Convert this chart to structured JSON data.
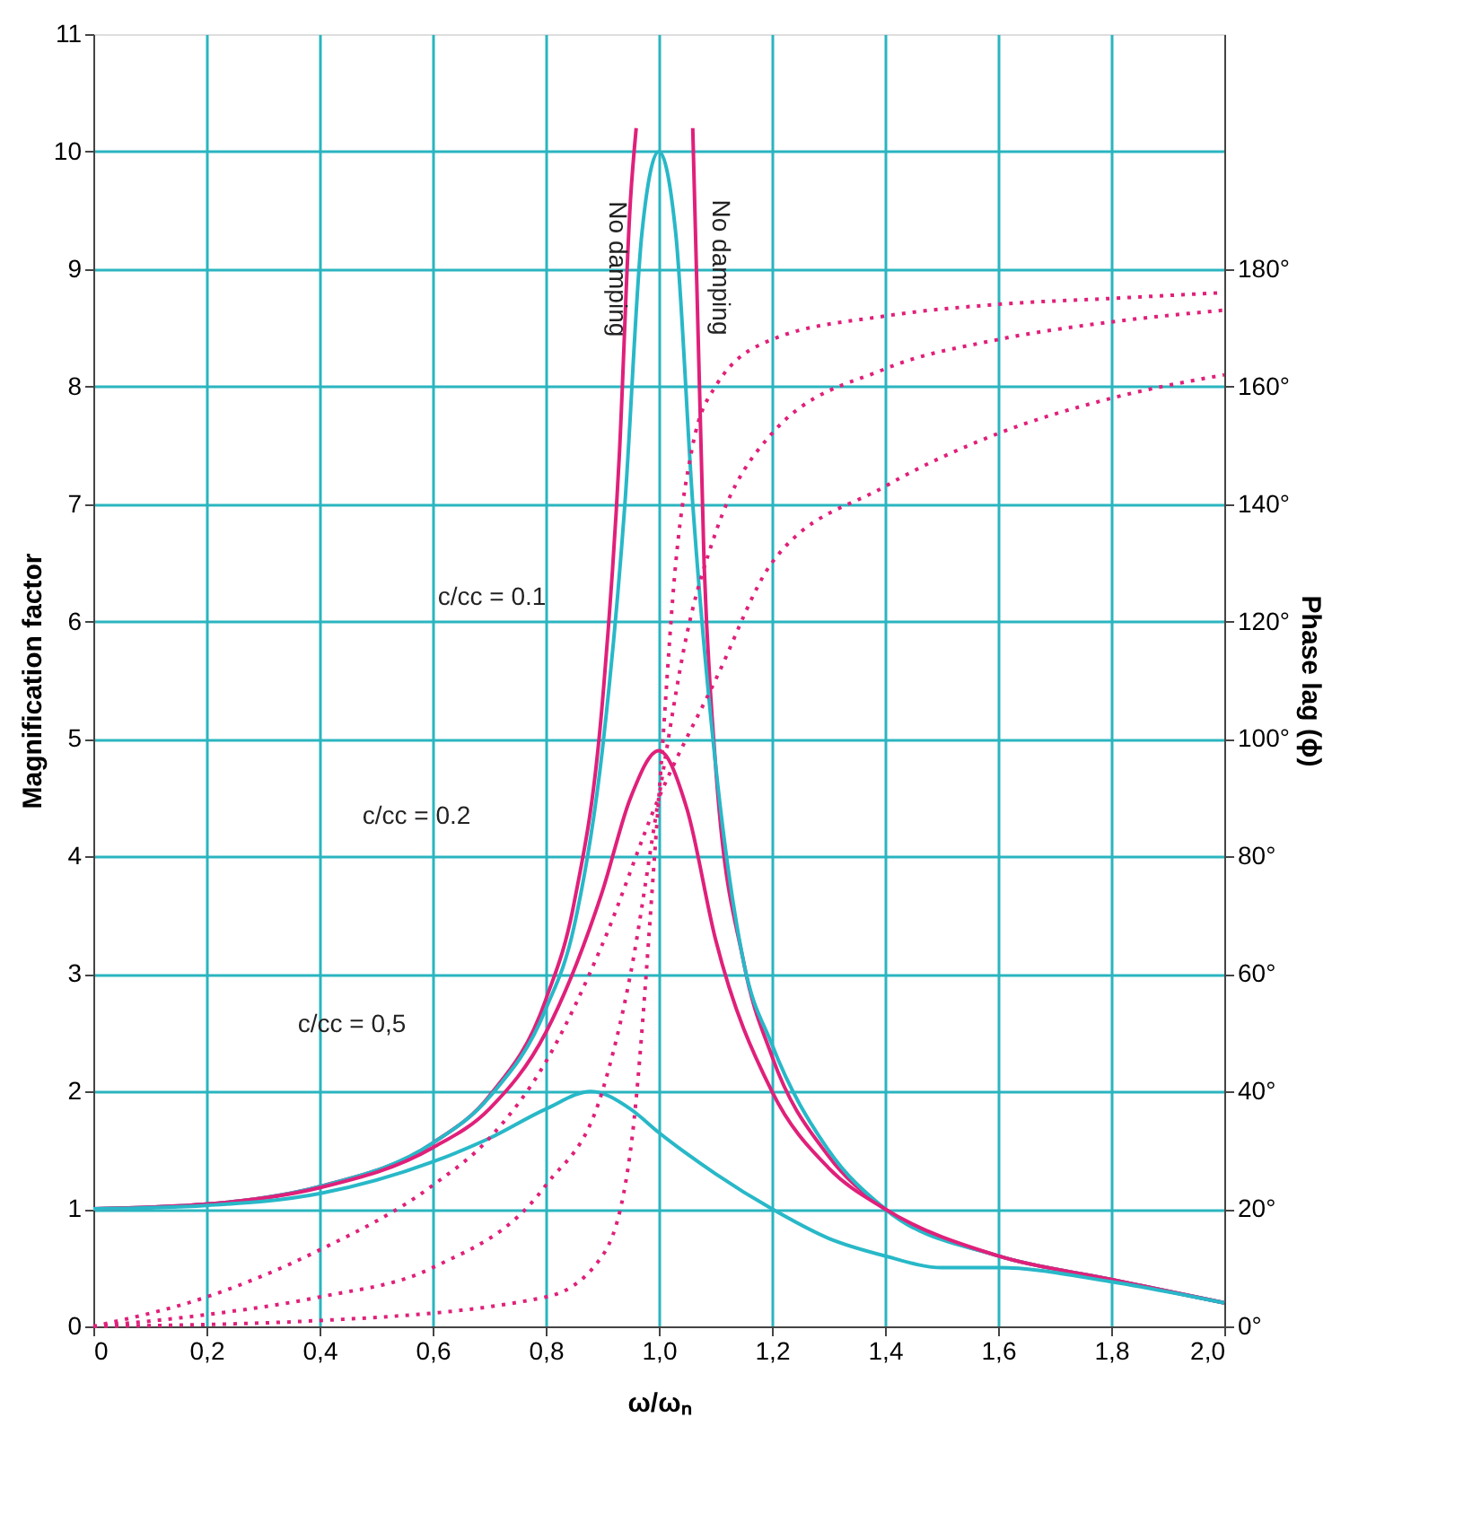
{
  "chart_data": {
    "type": "line",
    "xlabel": "ω/ωₙ",
    "ylabel": "Magnification factor",
    "y2label": "Phase lag (ϕ)",
    "xlim": [
      0,
      2.0
    ],
    "xticks": [
      0,
      {
        "value": 0.2,
        "label": "0,2"
      },
      {
        "value": 0.4,
        "label": "0,4"
      },
      {
        "value": 0.6,
        "label": "0,6"
      },
      {
        "value": 0.8,
        "label": "0,8"
      },
      {
        "value": 1.0,
        "label": "1,0"
      },
      {
        "value": 1.2,
        "label": "1,2"
      },
      {
        "value": 1.4,
        "label": "1,4"
      },
      {
        "value": 1.6,
        "label": "1,6"
      },
      {
        "value": 1.8,
        "label": "1,8"
      },
      {
        "value": 2.0,
        "label": "2,0"
      }
    ],
    "ylim": [
      0,
      11
    ],
    "yticks": [
      0,
      1,
      2,
      3,
      4,
      5,
      6,
      7,
      8,
      9,
      10,
      11
    ],
    "y2lim": [
      0,
      220
    ],
    "y2ticks": [
      {
        "value": 0,
        "label": "0°"
      },
      {
        "value": 20,
        "label": "20°"
      },
      {
        "value": 40,
        "label": "40°"
      },
      {
        "value": 60,
        "label": "60°"
      },
      {
        "value": 80,
        "label": "80°"
      },
      {
        "value": 100,
        "label": "100°"
      },
      {
        "value": 120,
        "label": "120°"
      },
      {
        "value": 140,
        "label": "140°"
      },
      {
        "value": 160,
        "label": "160°"
      },
      {
        "value": 180,
        "label": "180°"
      }
    ],
    "grid": true,
    "series": [
      {
        "color": "#e0207a",
        "line_style": "solid",
        "x": [
          0,
          0.2,
          0.4,
          0.6,
          0.7,
          0.8,
          0.85,
          0.9,
          0.93,
          0.95,
          0.96
        ],
        "values": [
          1,
          1.04,
          1.19,
          1.56,
          1.96,
          2.78,
          3.6,
          5.3,
          7.4,
          9.6,
          10.2
        ]
      },
      {
        "color": "#e0207a",
        "line_style": "solid",
        "x": [
          1.06,
          1.08,
          1.1,
          1.15,
          1.2,
          1.3,
          1.4,
          1.6,
          1.8,
          2.0
        ],
        "values": [
          10.2,
          6.5,
          4.8,
          3.1,
          2.3,
          1.45,
          1.0,
          0.6,
          0.4,
          0.2
        ]
      },
      {
        "color": "#28b8c8",
        "line_style": "solid",
        "x": [
          0,
          0.2,
          0.4,
          0.6,
          0.7,
          0.8,
          0.85,
          0.9,
          0.94,
          0.97,
          1.0,
          1.03,
          1.06,
          1.1,
          1.15,
          1.2,
          1.3,
          1.4,
          1.6,
          1.8,
          2.0
        ],
        "values": [
          1,
          1.04,
          1.19,
          1.56,
          1.95,
          2.7,
          3.4,
          4.9,
          7.0,
          9.3,
          10,
          9.3,
          7.0,
          4.8,
          3.1,
          2.4,
          1.5,
          1.0,
          0.6,
          0.4,
          0.2
        ]
      },
      {
        "color": "#e0207a",
        "line_style": "solid",
        "x": [
          0,
          0.2,
          0.4,
          0.6,
          0.7,
          0.8,
          0.9,
          0.95,
          1.0,
          1.05,
          1.1,
          1.2,
          1.3,
          1.4,
          1.6,
          1.8,
          2.0
        ],
        "values": [
          1,
          1.04,
          1.18,
          1.52,
          1.85,
          2.5,
          3.7,
          4.5,
          4.9,
          4.4,
          3.3,
          2.0,
          1.35,
          1.0,
          0.6,
          0.4,
          0.2
        ]
      },
      {
        "color": "#28b8c8",
        "line_style": "solid",
        "x": [
          0,
          0.2,
          0.4,
          0.6,
          0.7,
          0.8,
          0.88,
          0.95,
          1.0,
          1.1,
          1.2,
          1.3,
          1.4,
          1.5,
          1.6,
          1.8,
          2.0
        ],
        "values": [
          1,
          1.03,
          1.13,
          1.4,
          1.6,
          1.85,
          2.0,
          1.85,
          1.65,
          1.3,
          1.0,
          0.75,
          0.6,
          0.5,
          0.5,
          0.38,
          0.2
        ]
      },
      {
        "color": "#e0207a",
        "line_style": "dotted",
        "axis": "y2",
        "x": [
          0,
          0.4,
          0.8,
          0.9,
          0.95,
          1.0,
          1.03,
          1.06,
          1.1,
          1.2,
          1.4,
          1.6,
          1.8,
          2.0
        ],
        "values": [
          0,
          1,
          5,
          12,
          30,
          90,
          130,
          150,
          160,
          168,
          172,
          174,
          175,
          176
        ]
      },
      {
        "color": "#e0207a",
        "line_style": "dotted",
        "axis": "y2",
        "x": [
          0,
          0.2,
          0.4,
          0.6,
          0.8,
          0.9,
          0.95,
          1.0,
          1.05,
          1.1,
          1.2,
          1.4,
          1.6,
          1.8,
          2.0
        ],
        "values": [
          0,
          2,
          5,
          10,
          24,
          40,
          60,
          90,
          118,
          135,
          152,
          163,
          168,
          171,
          173
        ]
      },
      {
        "color": "#e0207a",
        "line_style": "dotted",
        "axis": "y2",
        "x": [
          0,
          0.2,
          0.4,
          0.6,
          0.7,
          0.8,
          0.9,
          1.0,
          1.1,
          1.2,
          1.4,
          1.6,
          1.8,
          2.0
        ],
        "values": [
          0,
          5,
          13,
          24,
          32,
          45,
          65,
          90,
          110,
          130,
          143,
          152,
          158,
          162
        ]
      }
    ],
    "annotations": [
      {
        "text": "No damping",
        "x": 0.925,
        "y": 9.0
      },
      "No damping",
      "c/cc = 0.1",
      "c/cc = 0.2",
      "c/cc = 0,5"
    ]
  }
}
